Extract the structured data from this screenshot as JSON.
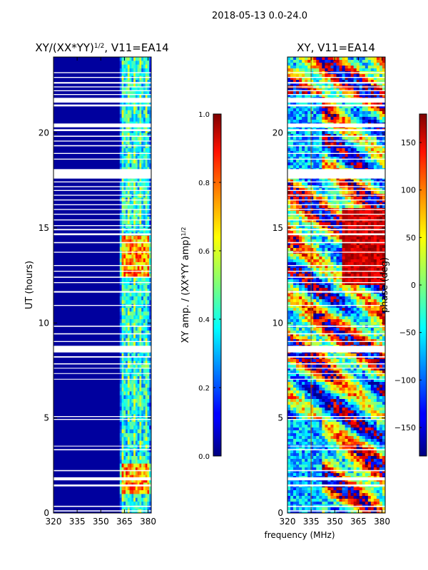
{
  "figure": {
    "suptitle": "2018-05-13 0.0-24.0",
    "xlabel": "frequency (MHz)"
  },
  "chart_data": [
    {
      "type": "heatmap",
      "title": "XY/(XX*YY)",
      "title_exponent": "1/2",
      "title_suffix": ", V11=EA14",
      "ylabel": "UT (hours)",
      "xlim": [
        320,
        382
      ],
      "ylim": [
        0,
        24
      ],
      "xticks": [
        320,
        335,
        350,
        365,
        380
      ],
      "yticks": [
        0,
        5,
        10,
        15,
        20
      ],
      "colorbar": {
        "label": "XY amp. / (XX*YY amp)",
        "label_exponent": "1/2",
        "range": [
          0.0,
          1.0
        ],
        "ticks": [
          "0.0",
          "0.2",
          "0.4",
          "0.6",
          "0.8",
          "1.0"
        ],
        "colormap": "jet"
      },
      "active_band_mhz": [
        362,
        382
      ],
      "flagged_gaps_ut": [
        [
          0.08,
          0.14
        ],
        [
          0.32,
          0.38
        ],
        [
          1.4,
          1.5
        ],
        [
          1.72,
          1.88
        ],
        [
          2.2,
          2.26
        ],
        [
          3.3,
          3.36
        ],
        [
          3.5,
          3.54
        ],
        [
          4.9,
          4.95
        ],
        [
          5.05,
          5.1
        ],
        [
          7.02,
          7.06
        ],
        [
          7.32,
          7.36
        ],
        [
          7.6,
          7.64
        ],
        [
          7.82,
          7.88
        ],
        [
          8.18,
          8.25
        ],
        [
          8.45,
          8.8
        ],
        [
          9.0,
          9.05
        ],
        [
          9.4,
          9.46
        ],
        [
          9.8,
          9.86
        ],
        [
          10.9,
          10.95
        ],
        [
          11.6,
          11.68
        ],
        [
          12.1,
          12.15
        ],
        [
          12.38,
          12.44
        ],
        [
          12.7,
          12.75
        ],
        [
          13.0,
          13.05
        ],
        [
          13.7,
          13.75
        ],
        [
          14.2,
          14.26
        ],
        [
          14.62,
          14.72
        ],
        [
          14.88,
          14.95
        ],
        [
          15.1,
          15.15
        ],
        [
          15.4,
          15.45
        ],
        [
          15.7,
          15.75
        ],
        [
          15.95,
          16.0
        ],
        [
          16.2,
          16.25
        ],
        [
          16.45,
          16.5
        ],
        [
          16.7,
          16.75
        ],
        [
          16.95,
          17.0
        ],
        [
          17.15,
          17.2
        ],
        [
          17.4,
          17.45
        ],
        [
          17.6,
          18.1
        ],
        [
          18.6,
          18.65
        ],
        [
          18.9,
          18.95
        ],
        [
          19.3,
          19.36
        ],
        [
          19.55,
          19.6
        ],
        [
          19.8,
          19.86
        ],
        [
          20.1,
          20.2
        ],
        [
          20.3,
          20.5
        ],
        [
          21.4,
          21.5
        ],
        [
          21.6,
          21.85
        ],
        [
          22.0,
          22.05
        ],
        [
          22.2,
          22.25
        ],
        [
          22.4,
          22.45
        ],
        [
          22.6,
          22.68
        ],
        [
          22.9,
          22.95
        ],
        [
          23.15,
          23.2
        ]
      ]
    },
    {
      "type": "heatmap",
      "title": "XY, V11=EA14",
      "ylabel": "",
      "xlim": [
        320,
        382
      ],
      "ylim": [
        0,
        24
      ],
      "xticks": [
        320,
        335,
        350,
        365,
        380
      ],
      "yticks": [
        0,
        5,
        10,
        15,
        20
      ],
      "colorbar": {
        "label": "phase (deg)",
        "range": [
          -180,
          180
        ],
        "ticks": [
          "−150",
          "−100",
          "−50",
          "0",
          "50",
          "100",
          "150"
        ],
        "tick_values": [
          -150,
          -100,
          -50,
          0,
          50,
          100,
          150
        ],
        "colormap": "jet"
      },
      "rfi_line_mhz": 335,
      "flagged_gaps_ut": [
        [
          0.08,
          0.14
        ],
        [
          0.32,
          0.38
        ],
        [
          1.4,
          1.5
        ],
        [
          1.72,
          1.88
        ],
        [
          2.2,
          2.26
        ],
        [
          3.3,
          3.36
        ],
        [
          3.5,
          3.54
        ],
        [
          4.9,
          4.95
        ],
        [
          5.05,
          5.1
        ],
        [
          7.02,
          7.06
        ],
        [
          7.32,
          7.36
        ],
        [
          7.6,
          7.64
        ],
        [
          7.82,
          7.88
        ],
        [
          8.18,
          8.25
        ],
        [
          8.45,
          8.8
        ],
        [
          9.0,
          9.05
        ],
        [
          9.4,
          9.46
        ],
        [
          9.8,
          9.86
        ],
        [
          10.9,
          10.95
        ],
        [
          11.6,
          11.68
        ],
        [
          12.1,
          12.15
        ],
        [
          12.38,
          12.44
        ],
        [
          12.7,
          12.75
        ],
        [
          13.0,
          13.05
        ],
        [
          13.7,
          13.75
        ],
        [
          14.2,
          14.26
        ],
        [
          14.62,
          14.72
        ],
        [
          14.88,
          14.95
        ],
        [
          15.1,
          15.15
        ],
        [
          15.4,
          15.45
        ],
        [
          15.7,
          15.75
        ],
        [
          15.95,
          16.0
        ],
        [
          16.2,
          16.25
        ],
        [
          16.45,
          16.5
        ],
        [
          16.7,
          16.75
        ],
        [
          16.95,
          17.0
        ],
        [
          17.15,
          17.2
        ],
        [
          17.4,
          17.45
        ],
        [
          17.6,
          18.1
        ],
        [
          18.6,
          18.65
        ],
        [
          18.9,
          18.95
        ],
        [
          19.3,
          19.36
        ],
        [
          19.55,
          19.6
        ],
        [
          19.8,
          19.86
        ],
        [
          20.1,
          20.2
        ],
        [
          20.3,
          20.5
        ],
        [
          21.4,
          21.5
        ],
        [
          21.6,
          21.85
        ],
        [
          22.0,
          22.05
        ],
        [
          22.2,
          22.25
        ],
        [
          22.4,
          22.45
        ],
        [
          22.6,
          22.68
        ],
        [
          22.9,
          22.95
        ],
        [
          23.15,
          23.2
        ]
      ]
    }
  ]
}
